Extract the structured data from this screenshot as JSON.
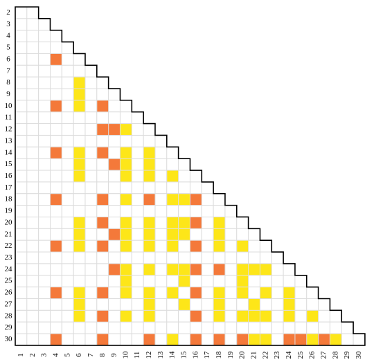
{
  "chart_data": {
    "type": "matrix",
    "rows": [
      2,
      3,
      4,
      5,
      6,
      7,
      8,
      9,
      10,
      11,
      12,
      13,
      14,
      15,
      16,
      17,
      18,
      19,
      20,
      21,
      22,
      23,
      24,
      25,
      26,
      27,
      28,
      29,
      30
    ],
    "columns": [
      1,
      2,
      3,
      4,
      5,
      6,
      7,
      8,
      9,
      10,
      11,
      12,
      13,
      14,
      15,
      16,
      17,
      18,
      19,
      20,
      21,
      22,
      23,
      24,
      25,
      26,
      27,
      28,
      29,
      30
    ],
    "colors": {
      "orange": "#f4793a",
      "yellow": "#fde619"
    },
    "cells": [
      {
        "row": 6,
        "col": 4,
        "color": "orange"
      },
      {
        "row": 8,
        "col": 6,
        "color": "yellow"
      },
      {
        "row": 9,
        "col": 6,
        "color": "yellow"
      },
      {
        "row": 10,
        "col": 4,
        "color": "orange"
      },
      {
        "row": 10,
        "col": 6,
        "color": "yellow"
      },
      {
        "row": 10,
        "col": 8,
        "color": "orange"
      },
      {
        "row": 12,
        "col": 8,
        "color": "orange"
      },
      {
        "row": 12,
        "col": 9,
        "color": "orange"
      },
      {
        "row": 12,
        "col": 10,
        "color": "yellow"
      },
      {
        "row": 14,
        "col": 4,
        "color": "orange"
      },
      {
        "row": 14,
        "col": 6,
        "color": "yellow"
      },
      {
        "row": 14,
        "col": 8,
        "color": "orange"
      },
      {
        "row": 14,
        "col": 10,
        "color": "yellow"
      },
      {
        "row": 14,
        "col": 12,
        "color": "yellow"
      },
      {
        "row": 15,
        "col": 6,
        "color": "yellow"
      },
      {
        "row": 15,
        "col": 9,
        "color": "orange"
      },
      {
        "row": 15,
        "col": 10,
        "color": "yellow"
      },
      {
        "row": 15,
        "col": 12,
        "color": "yellow"
      },
      {
        "row": 16,
        "col": 6,
        "color": "yellow"
      },
      {
        "row": 16,
        "col": 10,
        "color": "yellow"
      },
      {
        "row": 16,
        "col": 12,
        "color": "yellow"
      },
      {
        "row": 16,
        "col": 14,
        "color": "yellow"
      },
      {
        "row": 18,
        "col": 4,
        "color": "orange"
      },
      {
        "row": 18,
        "col": 8,
        "color": "orange"
      },
      {
        "row": 18,
        "col": 10,
        "color": "yellow"
      },
      {
        "row": 18,
        "col": 12,
        "color": "orange"
      },
      {
        "row": 18,
        "col": 14,
        "color": "yellow"
      },
      {
        "row": 18,
        "col": 15,
        "color": "yellow"
      },
      {
        "row": 18,
        "col": 16,
        "color": "orange"
      },
      {
        "row": 20,
        "col": 6,
        "color": "yellow"
      },
      {
        "row": 20,
        "col": 8,
        "color": "orange"
      },
      {
        "row": 20,
        "col": 10,
        "color": "yellow"
      },
      {
        "row": 20,
        "col": 12,
        "color": "yellow"
      },
      {
        "row": 20,
        "col": 14,
        "color": "yellow"
      },
      {
        "row": 20,
        "col": 15,
        "color": "yellow"
      },
      {
        "row": 20,
        "col": 16,
        "color": "orange"
      },
      {
        "row": 20,
        "col": 18,
        "color": "yellow"
      },
      {
        "row": 21,
        "col": 6,
        "color": "yellow"
      },
      {
        "row": 21,
        "col": 9,
        "color": "orange"
      },
      {
        "row": 21,
        "col": 10,
        "color": "yellow"
      },
      {
        "row": 21,
        "col": 12,
        "color": "yellow"
      },
      {
        "row": 21,
        "col": 14,
        "color": "yellow"
      },
      {
        "row": 21,
        "col": 15,
        "color": "yellow"
      },
      {
        "row": 21,
        "col": 18,
        "color": "yellow"
      },
      {
        "row": 22,
        "col": 4,
        "color": "orange"
      },
      {
        "row": 22,
        "col": 6,
        "color": "yellow"
      },
      {
        "row": 22,
        "col": 8,
        "color": "orange"
      },
      {
        "row": 22,
        "col": 10,
        "color": "yellow"
      },
      {
        "row": 22,
        "col": 12,
        "color": "yellow"
      },
      {
        "row": 22,
        "col": 14,
        "color": "yellow"
      },
      {
        "row": 22,
        "col": 16,
        "color": "orange"
      },
      {
        "row": 22,
        "col": 18,
        "color": "yellow"
      },
      {
        "row": 22,
        "col": 20,
        "color": "yellow"
      },
      {
        "row": 24,
        "col": 9,
        "color": "orange"
      },
      {
        "row": 24,
        "col": 10,
        "color": "yellow"
      },
      {
        "row": 24,
        "col": 12,
        "color": "yellow"
      },
      {
        "row": 24,
        "col": 14,
        "color": "yellow"
      },
      {
        "row": 24,
        "col": 15,
        "color": "yellow"
      },
      {
        "row": 24,
        "col": 16,
        "color": "orange"
      },
      {
        "row": 24,
        "col": 18,
        "color": "orange"
      },
      {
        "row": 24,
        "col": 20,
        "color": "yellow"
      },
      {
        "row": 24,
        "col": 21,
        "color": "yellow"
      },
      {
        "row": 24,
        "col": 22,
        "color": "yellow"
      },
      {
        "row": 25,
        "col": 10,
        "color": "yellow"
      },
      {
        "row": 25,
        "col": 15,
        "color": "yellow"
      },
      {
        "row": 25,
        "col": 20,
        "color": "yellow"
      },
      {
        "row": 26,
        "col": 4,
        "color": "orange"
      },
      {
        "row": 26,
        "col": 6,
        "color": "yellow"
      },
      {
        "row": 26,
        "col": 8,
        "color": "orange"
      },
      {
        "row": 26,
        "col": 10,
        "color": "yellow"
      },
      {
        "row": 26,
        "col": 12,
        "color": "yellow"
      },
      {
        "row": 26,
        "col": 14,
        "color": "yellow"
      },
      {
        "row": 26,
        "col": 16,
        "color": "orange"
      },
      {
        "row": 26,
        "col": 18,
        "color": "yellow"
      },
      {
        "row": 26,
        "col": 20,
        "color": "yellow"
      },
      {
        "row": 26,
        "col": 22,
        "color": "yellow"
      },
      {
        "row": 26,
        "col": 24,
        "color": "yellow"
      },
      {
        "row": 27,
        "col": 6,
        "color": "yellow"
      },
      {
        "row": 27,
        "col": 12,
        "color": "yellow"
      },
      {
        "row": 27,
        "col": 15,
        "color": "yellow"
      },
      {
        "row": 27,
        "col": 18,
        "color": "yellow"
      },
      {
        "row": 27,
        "col": 21,
        "color": "yellow"
      },
      {
        "row": 27,
        "col": 24,
        "color": "yellow"
      },
      {
        "row": 28,
        "col": 6,
        "color": "yellow"
      },
      {
        "row": 28,
        "col": 8,
        "color": "orange"
      },
      {
        "row": 28,
        "col": 10,
        "color": "yellow"
      },
      {
        "row": 28,
        "col": 12,
        "color": "yellow"
      },
      {
        "row": 28,
        "col": 16,
        "color": "orange"
      },
      {
        "row": 28,
        "col": 18,
        "color": "yellow"
      },
      {
        "row": 28,
        "col": 20,
        "color": "yellow"
      },
      {
        "row": 28,
        "col": 21,
        "color": "yellow"
      },
      {
        "row": 28,
        "col": 22,
        "color": "yellow"
      },
      {
        "row": 28,
        "col": 24,
        "color": "yellow"
      },
      {
        "row": 28,
        "col": 26,
        "color": "yellow"
      },
      {
        "row": 30,
        "col": 4,
        "color": "orange"
      },
      {
        "row": 30,
        "col": 8,
        "color": "orange"
      },
      {
        "row": 30,
        "col": 12,
        "color": "orange"
      },
      {
        "row": 30,
        "col": 14,
        "color": "yellow"
      },
      {
        "row": 30,
        "col": 16,
        "color": "orange"
      },
      {
        "row": 30,
        "col": 18,
        "color": "orange"
      },
      {
        "row": 30,
        "col": 20,
        "color": "orange"
      },
      {
        "row": 30,
        "col": 21,
        "color": "yellow"
      },
      {
        "row": 30,
        "col": 22,
        "color": "yellow"
      },
      {
        "row": 30,
        "col": 24,
        "color": "orange"
      },
      {
        "row": 30,
        "col": 25,
        "color": "orange"
      },
      {
        "row": 30,
        "col": 26,
        "color": "yellow"
      },
      {
        "row": 30,
        "col": 27,
        "color": "orange"
      },
      {
        "row": 30,
        "col": 28,
        "color": "yellow"
      }
    ]
  }
}
